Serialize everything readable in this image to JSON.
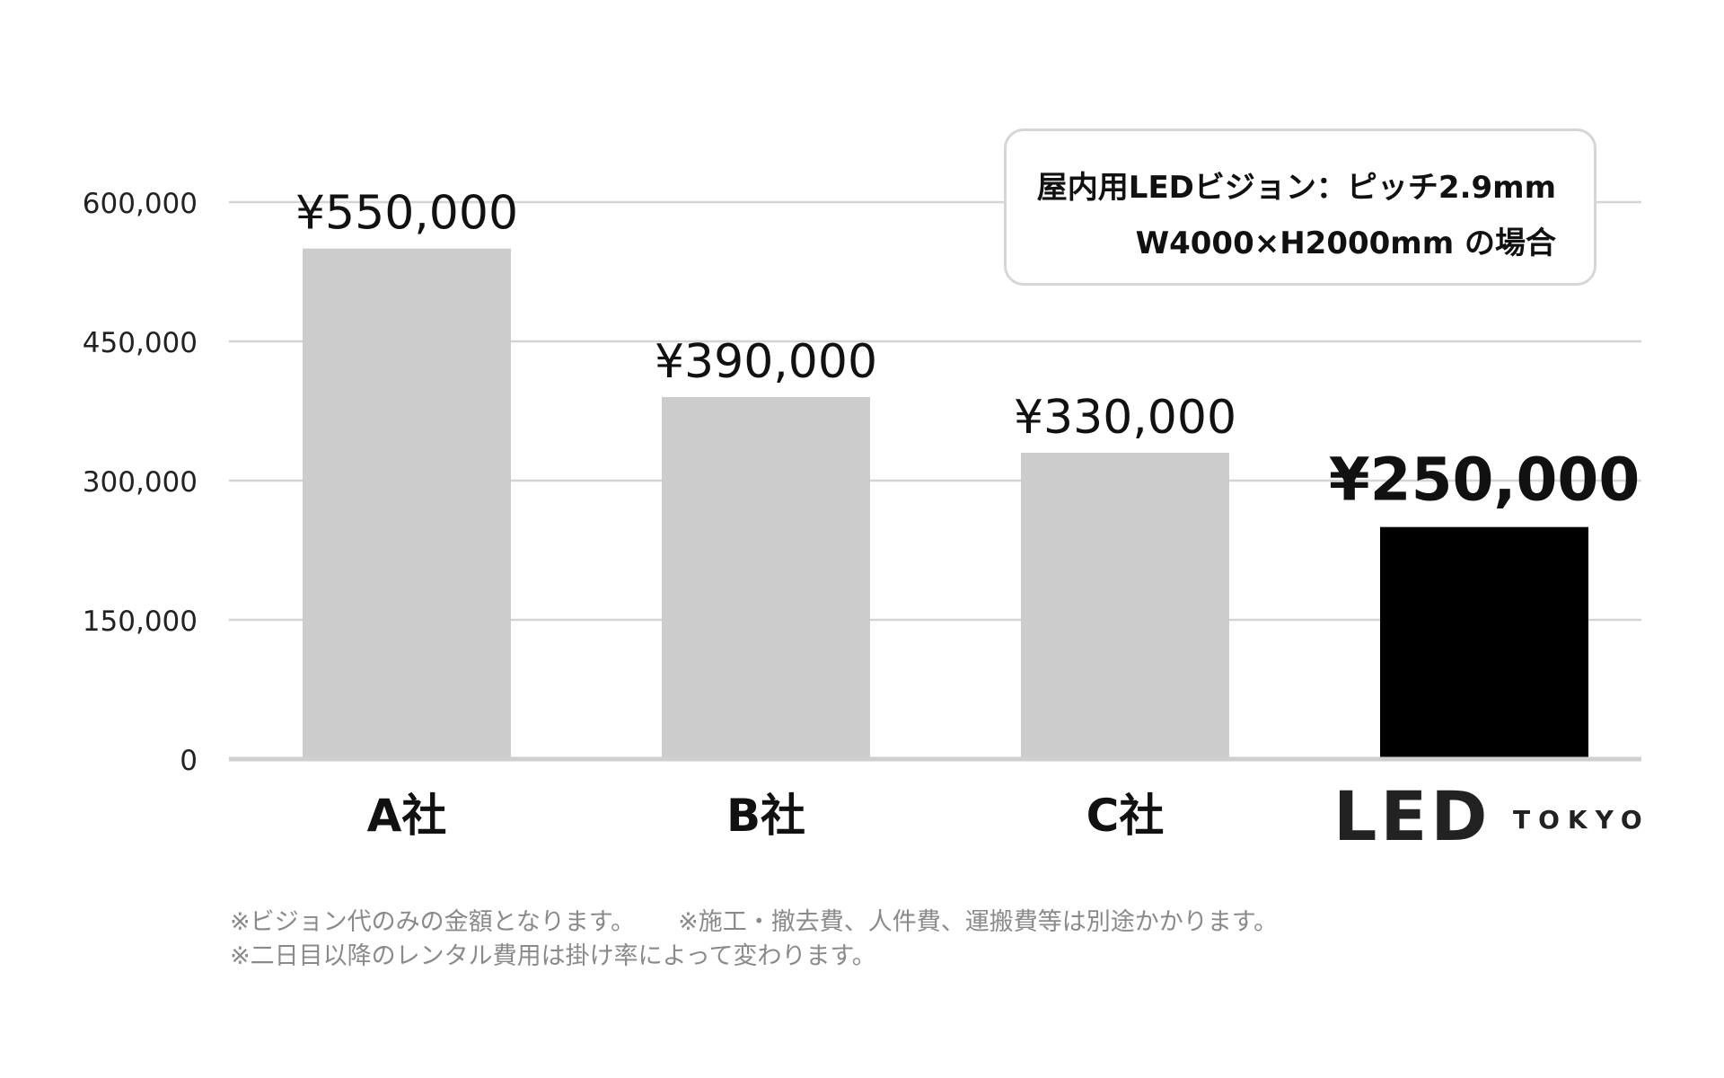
{
  "chart_data": {
    "type": "bar",
    "categories": [
      "A社",
      "B社",
      "C社",
      "LED TOKYO"
    ],
    "values": [
      550000,
      390000,
      330000,
      250000
    ],
    "data_labels": [
      "¥550,000",
      "¥390,000",
      "¥330,000",
      "¥250,000"
    ],
    "yticks": [
      0,
      150000,
      300000,
      450000,
      600000
    ],
    "ytick_labels": [
      "0",
      "150,000",
      "300,000",
      "450,000",
      "600,000"
    ],
    "ylim": [
      0,
      600000
    ],
    "grid": true,
    "legend": "none",
    "title": "",
    "xlabel": "",
    "ylabel": "",
    "highlight_category": "LED TOKYO",
    "colors": {
      "bar": "#cccccc",
      "highlight": "#000000",
      "grid": "#d4d4d4",
      "axis": "#cfcfcf"
    }
  },
  "info_box": {
    "line1": "屋内用LEDビジョン：ピッチ2.9mm",
    "line2": "W4000×H2000mm の場合"
  },
  "logo": {
    "mark": "LED",
    "word": "TOKYO",
    "color": "#222222"
  },
  "notes": {
    "line1a": "※ビジョン代のみの金額となります。",
    "line1b": "※施工・撤去費、人件費、運搬費等は別途かかります。",
    "line2": "※二日目以降のレンタル費用は掛け率によって変わります。"
  }
}
